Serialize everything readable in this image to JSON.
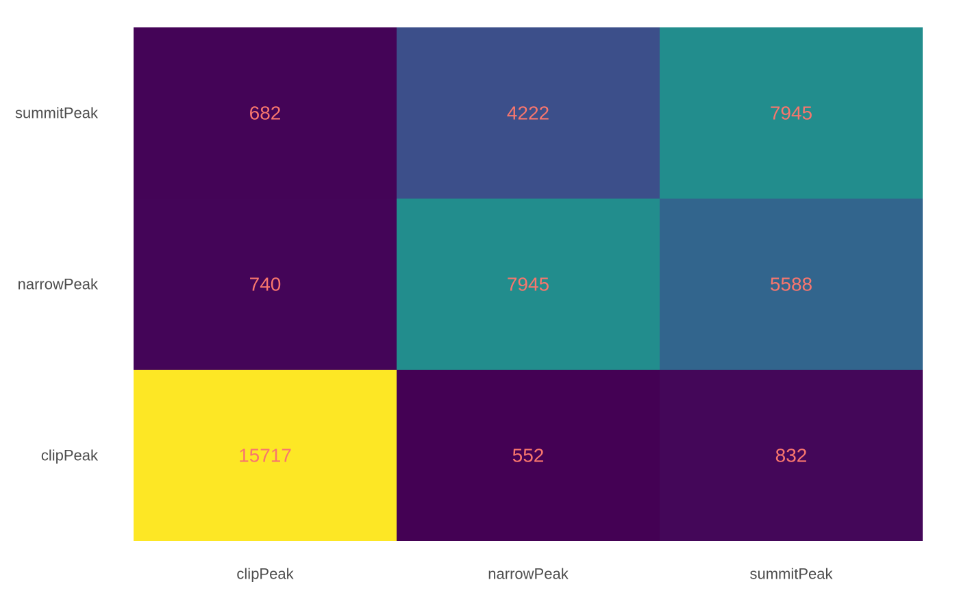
{
  "chart_data": {
    "type": "heatmap",
    "title": "",
    "xlabel": "",
    "ylabel": "",
    "x_categories": [
      "clipPeak",
      "narrowPeak",
      "summitPeak"
    ],
    "y_categories": [
      "clipPeak",
      "narrowPeak",
      "summitPeak"
    ],
    "values": [
      [
        15717,
        552,
        832
      ],
      [
        740,
        7945,
        5588
      ],
      [
        682,
        4222,
        7945
      ]
    ],
    "value_range": [
      552,
      15717
    ],
    "colormap": "viridis",
    "label_color": "#f8766d",
    "grid": false,
    "legend": "none"
  }
}
